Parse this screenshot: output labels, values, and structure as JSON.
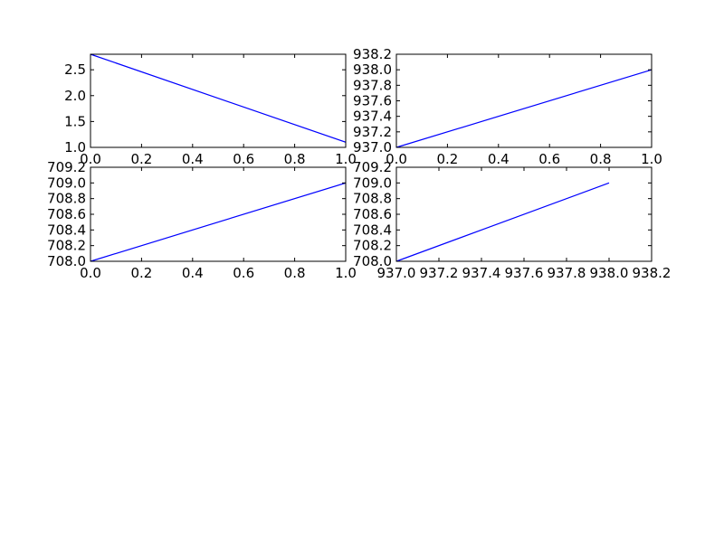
{
  "figure": {
    "background": "#ffffff",
    "line_color": "#0000ff"
  },
  "chart_data": [
    {
      "type": "line",
      "title": "",
      "xlabel": "",
      "ylabel": "",
      "grid": false,
      "xlim": [
        0.0,
        1.0
      ],
      "ylim": [
        1.0,
        2.8
      ],
      "x_ticks": [
        0.0,
        0.2,
        0.4,
        0.6,
        0.8,
        1.0
      ],
      "x_tick_labels": [
        "0.0",
        "0.2",
        "0.4",
        "0.6",
        "0.8",
        "1.0"
      ],
      "y_ticks": [
        1.0,
        1.5,
        2.0,
        2.5
      ],
      "y_tick_labels": [
        "1.0",
        "1.5",
        "2.0",
        "2.5"
      ],
      "series": [
        {
          "x": [
            0.0,
            1.0
          ],
          "y": [
            2.8,
            1.1
          ]
        }
      ]
    },
    {
      "type": "line",
      "title": "",
      "xlabel": "",
      "ylabel": "",
      "grid": false,
      "xlim": [
        0.0,
        1.0
      ],
      "ylim": [
        937.0,
        938.2
      ],
      "x_ticks": [
        0.0,
        0.2,
        0.4,
        0.6,
        0.8,
        1.0
      ],
      "x_tick_labels": [
        "0.0",
        "0.2",
        "0.4",
        "0.6",
        "0.8",
        "1.0"
      ],
      "y_ticks": [
        937.0,
        937.2,
        937.4,
        937.6,
        937.8,
        938.0,
        938.2
      ],
      "y_tick_labels": [
        "937.0",
        "937.2",
        "937.4",
        "937.6",
        "937.8",
        "938.0",
        "938.2"
      ],
      "series": [
        {
          "x": [
            0.0,
            1.0
          ],
          "y": [
            937.0,
            938.0
          ]
        }
      ]
    },
    {
      "type": "line",
      "title": "",
      "xlabel": "",
      "ylabel": "",
      "grid": false,
      "xlim": [
        0.0,
        1.0
      ],
      "ylim": [
        708.0,
        709.2
      ],
      "x_ticks": [
        0.0,
        0.2,
        0.4,
        0.6,
        0.8,
        1.0
      ],
      "x_tick_labels": [
        "0.0",
        "0.2",
        "0.4",
        "0.6",
        "0.8",
        "1.0"
      ],
      "y_ticks": [
        708.0,
        708.2,
        708.4,
        708.6,
        708.8,
        709.0,
        709.2
      ],
      "y_tick_labels": [
        "708.0",
        "708.2",
        "708.4",
        "708.6",
        "708.8",
        "709.0",
        "709.2"
      ],
      "series": [
        {
          "x": [
            0.0,
            1.0
          ],
          "y": [
            708.0,
            709.0
          ]
        }
      ]
    },
    {
      "type": "line",
      "title": "",
      "xlabel": "",
      "ylabel": "",
      "grid": false,
      "xlim": [
        937.0,
        938.2
      ],
      "ylim": [
        708.0,
        709.2
      ],
      "x_ticks": [
        937.0,
        937.2,
        937.4,
        937.6,
        937.8,
        938.0,
        938.2
      ],
      "x_tick_labels": [
        "937.0",
        "937.2",
        "937.4",
        "937.6",
        "937.8",
        "938.0",
        "938.2"
      ],
      "y_ticks": [
        708.0,
        708.2,
        708.4,
        708.6,
        708.8,
        709.0,
        709.2
      ],
      "y_tick_labels": [
        "708.0",
        "708.2",
        "708.4",
        "708.6",
        "708.8",
        "709.0",
        "709.2"
      ],
      "series": [
        {
          "x": [
            937.0,
            938.0
          ],
          "y": [
            708.0,
            709.0
          ]
        }
      ]
    }
  ]
}
